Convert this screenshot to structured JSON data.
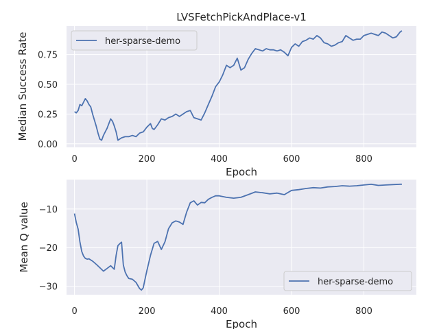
{
  "colors": {
    "background": "#eaeaf2",
    "grid": "#ffffff",
    "line": "#4c72b0",
    "text": "#262626"
  },
  "chart_data": [
    {
      "type": "line",
      "title": "LVSFetchPickAndPlace-v1",
      "xlabel": "Epoch",
      "ylabel": "Median Success Rate",
      "xlim": [
        -22,
        945
      ],
      "ylim": [
        -0.03,
        0.99
      ],
      "xticks": [
        0,
        200,
        400,
        600,
        800
      ],
      "yticks": [
        0.0,
        0.25,
        0.5,
        0.75
      ],
      "ytick_labels": [
        "0.00",
        "0.25",
        "0.50",
        "0.75"
      ],
      "grid": true,
      "legend": {
        "position": "upper-left",
        "entries": [
          "her-sparse-demo"
        ]
      },
      "series": [
        {
          "name": "her-sparse-demo",
          "x": [
            0,
            5,
            10,
            15,
            20,
            25,
            30,
            35,
            40,
            45,
            50,
            55,
            60,
            65,
            70,
            75,
            80,
            85,
            90,
            95,
            100,
            105,
            110,
            115,
            120,
            125,
            130,
            140,
            150,
            160,
            170,
            180,
            190,
            200,
            210,
            215,
            220,
            230,
            240,
            250,
            260,
            270,
            280,
            290,
            300,
            310,
            320,
            330,
            340,
            350,
            360,
            370,
            380,
            390,
            400,
            410,
            420,
            430,
            440,
            450,
            460,
            470,
            480,
            490,
            500,
            510,
            520,
            530,
            540,
            550,
            560,
            570,
            580,
            590,
            600,
            610,
            620,
            630,
            640,
            650,
            660,
            670,
            680,
            690,
            700,
            710,
            720,
            730,
            740,
            750,
            760,
            770,
            780,
            790,
            800,
            810,
            820,
            830,
            840,
            850,
            860,
            870,
            880,
            890,
            900,
            905
          ],
          "y": [
            0.27,
            0.26,
            0.28,
            0.33,
            0.32,
            0.35,
            0.38,
            0.36,
            0.33,
            0.31,
            0.25,
            0.2,
            0.15,
            0.09,
            0.04,
            0.03,
            0.07,
            0.1,
            0.13,
            0.17,
            0.21,
            0.19,
            0.15,
            0.1,
            0.03,
            0.04,
            0.05,
            0.06,
            0.06,
            0.07,
            0.06,
            0.09,
            0.1,
            0.14,
            0.17,
            0.13,
            0.12,
            0.16,
            0.21,
            0.2,
            0.22,
            0.23,
            0.25,
            0.23,
            0.25,
            0.27,
            0.28,
            0.22,
            0.21,
            0.2,
            0.26,
            0.33,
            0.4,
            0.48,
            0.52,
            0.58,
            0.66,
            0.64,
            0.66,
            0.72,
            0.62,
            0.64,
            0.71,
            0.76,
            0.8,
            0.79,
            0.78,
            0.8,
            0.79,
            0.79,
            0.78,
            0.79,
            0.77,
            0.74,
            0.81,
            0.84,
            0.82,
            0.86,
            0.87,
            0.89,
            0.88,
            0.91,
            0.89,
            0.85,
            0.84,
            0.82,
            0.83,
            0.85,
            0.86,
            0.91,
            0.89,
            0.87,
            0.88,
            0.88,
            0.91,
            0.92,
            0.93,
            0.92,
            0.91,
            0.94,
            0.93,
            0.91,
            0.89,
            0.9,
            0.94,
            0.95
          ]
        }
      ]
    },
    {
      "type": "line",
      "title": "",
      "xlabel": "Epoch",
      "ylabel": "Mean Q value",
      "xlim": [
        -22,
        945
      ],
      "ylim": [
        -32.2,
        -2.4
      ],
      "xticks": [
        0,
        200,
        400,
        600,
        800
      ],
      "yticks": [
        -30,
        -20,
        -10
      ],
      "ytick_labels": [
        "−30",
        "−20",
        "−10"
      ],
      "grid": true,
      "legend": {
        "position": "lower-right",
        "entries": [
          "her-sparse-demo"
        ]
      },
      "series": [
        {
          "name": "her-sparse-demo",
          "x": [
            0,
            5,
            10,
            15,
            20,
            25,
            30,
            35,
            40,
            50,
            60,
            70,
            80,
            90,
            100,
            110,
            115,
            120,
            125,
            130,
            135,
            140,
            145,
            150,
            160,
            170,
            180,
            185,
            190,
            195,
            200,
            210,
            220,
            230,
            240,
            250,
            260,
            270,
            280,
            290,
            300,
            310,
            320,
            330,
            340,
            350,
            360,
            370,
            380,
            390,
            400,
            420,
            440,
            460,
            480,
            500,
            520,
            540,
            560,
            580,
            600,
            620,
            640,
            660,
            680,
            700,
            720,
            740,
            760,
            780,
            800,
            820,
            840,
            860,
            880,
            900,
            905
          ],
          "y": [
            -11.2,
            -13.5,
            -15.2,
            -18.5,
            -21.0,
            -22.2,
            -22.8,
            -23.0,
            -22.9,
            -23.5,
            -24.3,
            -25.2,
            -26.1,
            -25.4,
            -24.7,
            -25.6,
            -22.0,
            -19.5,
            -19.0,
            -18.6,
            -24.5,
            -26.3,
            -27.3,
            -28.0,
            -28.2,
            -29.0,
            -30.6,
            -31.0,
            -30.4,
            -28.2,
            -26.0,
            -22.0,
            -18.9,
            -18.4,
            -20.5,
            -18.5,
            -15.1,
            -13.6,
            -13.1,
            -13.4,
            -14.0,
            -10.8,
            -8.4,
            -7.9,
            -9.0,
            -8.3,
            -8.4,
            -7.5,
            -7.0,
            -6.6,
            -6.6,
            -7.0,
            -7.2,
            -7.0,
            -6.3,
            -5.6,
            -5.8,
            -6.1,
            -5.9,
            -6.3,
            -5.2,
            -5.0,
            -4.7,
            -4.5,
            -4.6,
            -4.3,
            -4.2,
            -4.0,
            -4.1,
            -4.0,
            -3.8,
            -3.6,
            -3.9,
            -3.8,
            -3.7,
            -3.6,
            -3.6
          ]
        }
      ]
    }
  ]
}
